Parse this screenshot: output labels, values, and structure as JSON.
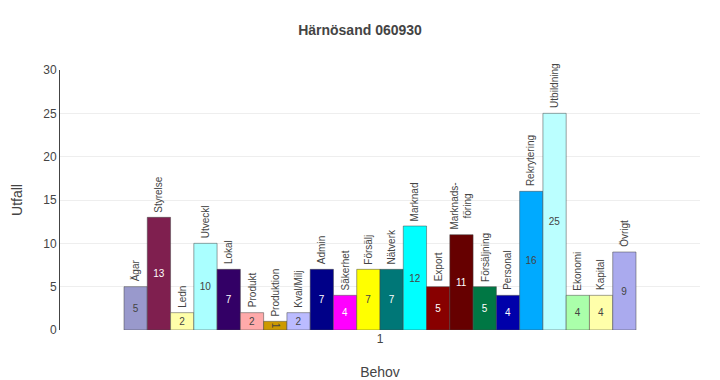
{
  "chart_data": {
    "type": "bar",
    "title": "Härnösand 060930",
    "xlabel": "Behov",
    "ylabel": "Utfall",
    "categories": [
      "1"
    ],
    "series": [
      {
        "name": "Ägar",
        "color": "#9999cc",
        "values": [
          5
        ]
      },
      {
        "name": "Styrelse",
        "color": "#7f1f4f",
        "values": [
          13
        ]
      },
      {
        "name": "Ledn",
        "color": "#ffffaa",
        "values": [
          2
        ]
      },
      {
        "name": "Utveckl",
        "color": "#aaffff",
        "values": [
          10
        ]
      },
      {
        "name": "Lokal",
        "color": "#330066",
        "values": [
          7
        ]
      },
      {
        "name": "Produkt",
        "color": "#ffaaaa",
        "values": [
          2
        ]
      },
      {
        "name": "Produktion",
        "color": "#cc9900",
        "values": [
          1
        ]
      },
      {
        "name": "Kval/Milj",
        "color": "#bbbbff",
        "values": [
          2
        ]
      },
      {
        "name": "Admin",
        "color": "#000088",
        "values": [
          7
        ]
      },
      {
        "name": "Säkerhet",
        "color": "#ff00ff",
        "values": [
          4
        ]
      },
      {
        "name": "Försälj",
        "color": "#ffff00",
        "values": [
          7
        ]
      },
      {
        "name": "Nätverk",
        "color": "#007777",
        "values": [
          7
        ]
      },
      {
        "name": "Marknad",
        "color": "#00ffff",
        "values": [
          12
        ]
      },
      {
        "name": "Export",
        "color": "#880000",
        "values": [
          5
        ]
      },
      {
        "name": "Marknads-\nföring",
        "color": "#660000",
        "values": [
          11
        ]
      },
      {
        "name": "Försäljning",
        "color": "#007744",
        "values": [
          5
        ]
      },
      {
        "name": "Personal",
        "color": "#0000aa",
        "values": [
          4
        ]
      },
      {
        "name": "Rekrytering",
        "color": "#00aaff",
        "values": [
          16
        ]
      },
      {
        "name": "Utbildning",
        "color": "#bbffff",
        "values": [
          25
        ]
      },
      {
        "name": "Ekonomi",
        "color": "#aaffaa",
        "values": [
          4
        ]
      },
      {
        "name": "Kapital",
        "color": "#ffffaa",
        "values": [
          4
        ]
      },
      {
        "name": "Övrigt",
        "color": "#aaaaee",
        "values": [
          9
        ]
      }
    ],
    "ylim": [
      0,
      30
    ],
    "yticks": [
      0,
      5,
      10,
      15,
      20,
      25,
      30
    ],
    "grid": true,
    "data_labels": true
  }
}
